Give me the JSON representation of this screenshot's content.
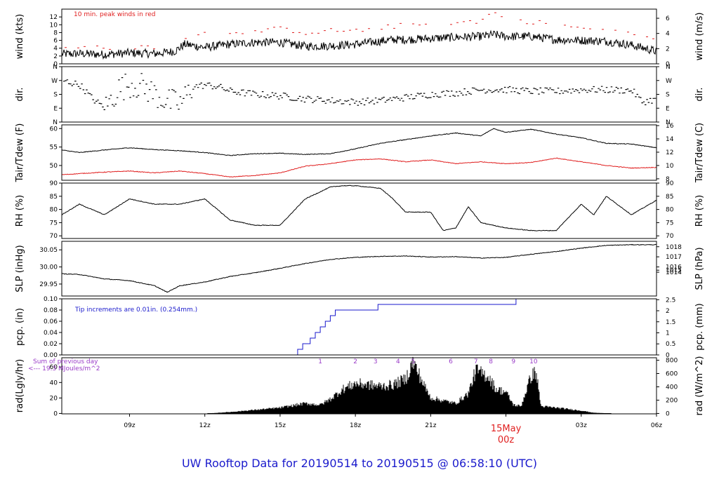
{
  "title": "UW Rooftop Data for 20190514  to  20190515 @ 06:58:10  (UTC)",
  "chart_data": {
    "type": "line",
    "x_axis": {
      "unit": "UTC",
      "range_hours": [
        6.3,
        30.0
      ],
      "ticks": [
        {
          "h": 9,
          "label": "09z"
        },
        {
          "h": 12,
          "label": "12z"
        },
        {
          "h": 15,
          "label": "15z"
        },
        {
          "h": 18,
          "label": "18z"
        },
        {
          "h": 21,
          "label": "21z"
        },
        {
          "h": 27,
          "label": "03z"
        },
        {
          "h": 30,
          "label": "06z"
        }
      ],
      "day_marker": {
        "h": 24,
        "date": "15May",
        "time": "00z"
      }
    },
    "panels": [
      {
        "id": "wind",
        "ylabel_left": "wind (kts)",
        "ylabel_right": "wind (m/s)",
        "ylim": [
          0,
          14
        ],
        "left_ticks": [
          0,
          2,
          4,
          6,
          8,
          10,
          12
        ],
        "right_ticks": [
          {
            "v": 0,
            "label": "0"
          },
          {
            "v": 3.89,
            "label": "2"
          },
          {
            "v": 7.78,
            "label": "4"
          },
          {
            "v": 11.66,
            "label": "6"
          }
        ],
        "annotation": "10 min. peak winds in red",
        "series": [
          {
            "style": "wiggly",
            "color": "#000000",
            "x": [
              6.3,
              7,
              8,
              9,
              10,
              10.8,
              11.2,
              12,
              13,
              14,
              15,
              16,
              17,
              18,
              19,
              19.5,
              20,
              21,
              22,
              23,
              23.5,
              24,
              25,
              26,
              27,
              28,
              29,
              30
            ],
            "y": [
              2.5,
              2.6,
              2.4,
              2.8,
              2.6,
              3.2,
              5.0,
              4.2,
              5.0,
              5.5,
              5.5,
              4.5,
              4.6,
              5.0,
              5.8,
              6.2,
              6.2,
              6.5,
              6.8,
              7.0,
              7.5,
              7.0,
              7.0,
              6.2,
              6.0,
              5.8,
              4.8,
              3.2
            ]
          },
          {
            "style": "dashes",
            "color": "#e02020",
            "x": [
              6.5,
              7.5,
              8.5,
              9.5,
              10.5,
              11,
              11.5,
              12,
              13,
              14,
              15,
              16,
              17,
              18,
              19,
              20,
              21,
              22,
              23,
              23.4,
              24,
              25,
              26,
              27,
              28,
              29,
              30
            ],
            "y": [
              4,
              4.3,
              3.8,
              4.5,
              4.3,
              6.0,
              7.5,
              8.0,
              8.3,
              8.3,
              9.0,
              8.0,
              8.5,
              8.5,
              9.2,
              10.0,
              10.2,
              10.5,
              11.0,
              13.5,
              11.0,
              10.8,
              10.0,
              9.0,
              9.0,
              7.5,
              5.8
            ]
          }
        ]
      },
      {
        "id": "dir",
        "ylabel_left": "dir.",
        "ylabel_right": "dir.",
        "ylim": [
          0,
          360
        ],
        "left_ticks": [
          {
            "v": 360,
            "label": "N"
          },
          {
            "v": 270,
            "label": "W"
          },
          {
            "v": 180,
            "label": "S"
          },
          {
            "v": 90,
            "label": "E"
          },
          {
            "v": 0,
            "label": "N"
          }
        ],
        "right_ticks": [
          {
            "v": 360,
            "label": "N"
          },
          {
            "v": 270,
            "label": "W"
          },
          {
            "v": 180,
            "label": "S"
          },
          {
            "v": 90,
            "label": "E"
          },
          {
            "v": 0,
            "label": "N"
          }
        ],
        "series": [
          {
            "style": "scatter",
            "color": "#000000",
            "x": [
              6.3,
              7,
              7.5,
              8,
              8.5,
              9,
              9.5,
              10,
              10.5,
              11,
              11.5,
              12,
              12.5,
              13,
              14,
              15,
              16,
              17,
              18,
              19,
              20,
              21,
              22,
              23,
              24,
              25,
              26,
              27,
              28,
              29,
              29.4,
              30
            ],
            "y": [
              270,
              240,
              150,
              90,
              210,
              250,
              230,
              180,
              130,
              120,
              230,
              240,
              230,
              200,
              180,
              170,
              150,
              140,
              130,
              140,
              160,
              180,
              190,
              210,
              210,
              200,
              200,
              210,
              210,
              205,
              130,
              150
            ]
          }
        ]
      },
      {
        "id": "temp",
        "ylabel_left": "Tair/Tdew (F)",
        "ylabel_right": "Tair/Tdew (C)",
        "ylim": [
          46,
          61
        ],
        "left_ticks": [
          50,
          55,
          60
        ],
        "right_ticks": [
          {
            "v": 46.4,
            "label": "8"
          },
          {
            "v": 50.0,
            "label": "10"
          },
          {
            "v": 53.6,
            "label": "12"
          },
          {
            "v": 57.2,
            "label": "14"
          },
          {
            "v": 60.8,
            "label": "16"
          }
        ],
        "series": [
          {
            "style": "smooth",
            "color": "#000000",
            "x": [
              6.3,
              7,
              8,
              9,
              10,
              11,
              12,
              13,
              14,
              15,
              16,
              17,
              18,
              19,
              20,
              21,
              22,
              23,
              23.5,
              24,
              25,
              26,
              27,
              28,
              29,
              30
            ],
            "y": [
              54.2,
              53.5,
              54.2,
              54.8,
              54.3,
              54.0,
              53.5,
              52.7,
              53.2,
              53.3,
              53.0,
              53.2,
              54.5,
              56.0,
              57.0,
              58.0,
              58.8,
              58.0,
              60.0,
              59.0,
              59.8,
              58.5,
              57.5,
              56.0,
              55.8,
              54.8
            ]
          },
          {
            "style": "smooth",
            "color": "#e02020",
            "x": [
              6.3,
              7,
              8,
              9,
              10,
              11,
              12,
              13,
              14,
              15,
              16,
              17,
              18,
              19,
              20,
              21,
              22,
              23,
              24,
              25,
              26,
              27,
              28,
              29,
              30
            ],
            "y": [
              47.5,
              47.8,
              48.2,
              48.5,
              48.0,
              48.5,
              47.8,
              46.9,
              47.3,
              48.0,
              49.8,
              50.5,
              51.5,
              51.8,
              51.0,
              51.5,
              50.5,
              51.0,
              50.5,
              50.8,
              52.0,
              51.0,
              50.0,
              49.3,
              49.5
            ]
          }
        ]
      },
      {
        "id": "rh",
        "ylabel_left": "RH (%)",
        "ylabel_right": "RH (%)",
        "ylim": [
          69,
          90
        ],
        "left_ticks": [
          70,
          75,
          80,
          85,
          90
        ],
        "right_ticks": [
          {
            "v": 70,
            "label": "70"
          },
          {
            "v": 75,
            "label": "75"
          },
          {
            "v": 80,
            "label": "80"
          },
          {
            "v": 85,
            "label": "85"
          },
          {
            "v": 90,
            "label": "90"
          }
        ],
        "series": [
          {
            "style": "smooth",
            "color": "#000000",
            "x": [
              6.3,
              7,
              8,
              9,
              10,
              11,
              12,
              13,
              14,
              15,
              16,
              17,
              17.5,
              18,
              19,
              19.5,
              20,
              21,
              21.5,
              22,
              22.5,
              23,
              24,
              25,
              26,
              27,
              27.5,
              28,
              29,
              30
            ],
            "y": [
              78,
              82,
              78,
              84,
              82,
              82,
              84,
              76,
              74,
              74,
              84,
              88.5,
              89,
              89,
              88,
              84,
              79,
              79,
              72,
              73,
              81,
              75,
              73,
              72,
              72,
              82,
              78,
              85,
              78,
              83.5
            ]
          }
        ]
      },
      {
        "id": "slp",
        "ylabel_left": "SLP (inHg)",
        "ylabel_right": "SLP (hPa)",
        "ylim": [
          29.915,
          30.075
        ],
        "left_ticks": [
          29.95,
          30.0,
          30.05
        ],
        "left_tick_labels": [
          "29.95",
          "30.00",
          "30.05"
        ],
        "right_ticks": [
          {
            "v": 29.9846,
            "label": "1014"
          },
          {
            "v": 29.9905,
            "label": "1015"
          },
          {
            "v": 30.0,
            "label": "1016"
          },
          {
            "v": 30.0296,
            "label": "1017"
          },
          {
            "v": 30.0591,
            "label": "1018"
          }
        ],
        "series": [
          {
            "style": "smooth",
            "color": "#000000",
            "x": [
              6.3,
              7,
              8,
              9,
              10,
              10.5,
              11,
              12,
              13,
              14,
              15,
              16,
              17,
              18,
              19,
              20,
              21,
              22,
              23,
              24,
              25,
              26,
              27,
              28,
              29,
              30
            ],
            "y": [
              29.98,
              29.978,
              29.965,
              29.96,
              29.945,
              29.926,
              29.945,
              29.956,
              29.972,
              29.983,
              29.996,
              30.01,
              30.022,
              30.028,
              30.031,
              30.032,
              30.029,
              30.03,
              30.026,
              30.028,
              30.037,
              30.045,
              30.055,
              30.063,
              30.065,
              30.065
            ]
          }
        ]
      },
      {
        "id": "pcp",
        "ylabel_left": "pcp. (in)",
        "ylabel_right": "pcp. (mm)",
        "ylim": [
          0,
          0.1
        ],
        "left_ticks": [
          0.0,
          0.02,
          0.04,
          0.06,
          0.08,
          0.1
        ],
        "left_tick_labels": [
          "0.00",
          "0.02",
          "0.04",
          "0.06",
          "0.08",
          "0.10"
        ],
        "right_ticks": [
          {
            "v": 0,
            "label": "0"
          },
          {
            "v": 0.01969,
            "label": "0.5"
          },
          {
            "v": 0.03937,
            "label": "1"
          },
          {
            "v": 0.05906,
            "label": "1.5"
          },
          {
            "v": 0.07874,
            "label": "2"
          },
          {
            "v": 0.09843,
            "label": "2.5"
          }
        ],
        "annotation": "Tip increments are 0.01in. (0.254mm.)",
        "series": [
          {
            "style": "step",
            "color": "#1a1acc",
            "x": [
              6.3,
              15.7,
              15.9,
              16.2,
              16.4,
              16.6,
              16.8,
              17.0,
              17.2,
              18.9,
              24.4,
              30.0
            ],
            "y": [
              0.0,
              0.01,
              0.02,
              0.03,
              0.04,
              0.05,
              0.06,
              0.07,
              0.08,
              0.09,
              0.1,
              0.1
            ]
          }
        ]
      },
      {
        "id": "rad",
        "ylabel_left": "rad(Lgly/hr)",
        "ylabel_right": "rad (W/m^2)",
        "ylim": [
          -0.5,
          72
        ],
        "left_ticks": [
          0,
          20,
          40,
          60
        ],
        "right_ticks": [
          {
            "v": 0,
            "label": "0"
          },
          {
            "v": 17.2,
            "label": "200"
          },
          {
            "v": 34.4,
            "label": "400"
          },
          {
            "v": 51.6,
            "label": "600"
          },
          {
            "v": 68.8,
            "label": "800"
          }
        ],
        "annotation_line1": "Sum of previous day",
        "annotation_line2": "<--- 19.3 MJoules/m^2",
        "markers": [
          {
            "h": 16.6,
            "label": "1"
          },
          {
            "h": 18.0,
            "label": "2"
          },
          {
            "h": 18.8,
            "label": "3"
          },
          {
            "h": 19.7,
            "label": "4"
          },
          {
            "h": 20.3,
            "label": "5"
          },
          {
            "h": 21.8,
            "label": "6"
          },
          {
            "h": 22.8,
            "label": "7"
          },
          {
            "h": 23.4,
            "label": "8"
          },
          {
            "h": 24.3,
            "label": "9"
          },
          {
            "h": 25.1,
            "label": "10"
          }
        ],
        "series": [
          {
            "style": "filled",
            "color": "#000000",
            "x": [
              12.1,
              13,
              14,
              15,
              16,
              16.6,
              17,
              17.5,
              18,
              18.5,
              19,
              19.5,
              20,
              20.3,
              20.8,
              21,
              21.5,
              22,
              22.5,
              22.8,
              23,
              23.3,
              23.6,
              24,
              24.3,
              24.6,
              25,
              25.2,
              25.4,
              26,
              26.5,
              27,
              27.5,
              28.2
            ],
            "y": [
              0,
              2,
              5,
              8,
              14,
              12,
              20,
              34,
              42,
              40,
              38,
              40,
              48,
              72,
              35,
              22,
              18,
              14,
              28,
              60,
              56,
              52,
              34,
              30,
              12,
              10,
              52,
              58,
              10,
              8,
              6,
              4,
              1,
              0
            ]
          }
        ]
      }
    ]
  }
}
